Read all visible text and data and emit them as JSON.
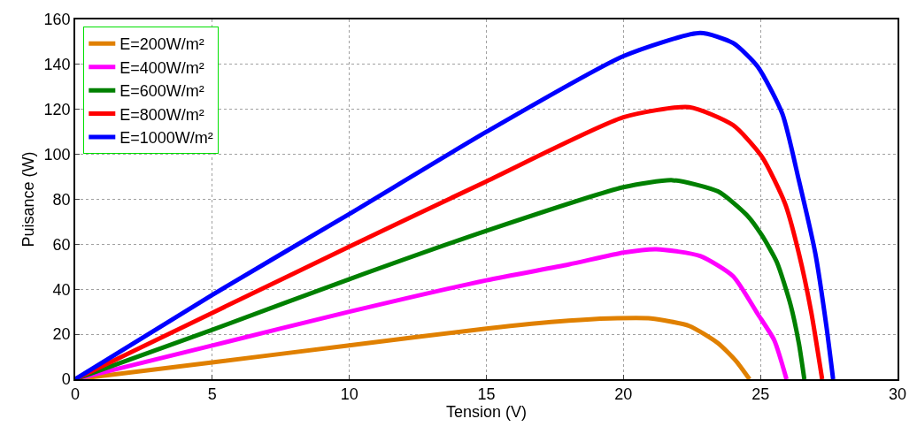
{
  "chart_data": {
    "type": "line",
    "xlabel": "Tension (V)",
    "ylabel": "Puisance (W)",
    "xlim": [
      0,
      30
    ],
    "xticks": [
      0,
      5,
      10,
      15,
      20,
      25,
      30
    ],
    "ylim": [
      0,
      160
    ],
    "yticks": [
      0,
      20,
      40,
      60,
      80,
      100,
      120,
      140,
      160
    ],
    "grid": true,
    "legend": "top left",
    "line_style": "solid",
    "series": [
      {
        "name": "E=200W/m²",
        "color": "#e08000",
        "x": [
          0,
          5,
          10,
          15,
          18,
          19.5,
          21,
          22.4,
          23.45,
          24.1,
          24.6
        ],
        "values": [
          0,
          7.5,
          15,
          22.5,
          26,
          27,
          27,
          23.7,
          16,
          8.2,
          0
        ]
      },
      {
        "name": "E=400W/m²",
        "color": "#ff00ff",
        "x": [
          0,
          5,
          10,
          15,
          18,
          20,
          21.2,
          22.8,
          24.0,
          24.9,
          25.5,
          25.95
        ],
        "values": [
          0,
          15,
          30,
          44,
          51,
          56.3,
          57.8,
          54.8,
          45.8,
          29,
          17.4,
          0
        ]
      },
      {
        "name": "E=600W/m²",
        "color": "#008000",
        "x": [
          0,
          5,
          10,
          15,
          20,
          21.8,
          23.45,
          24.5,
          25.05,
          25.6,
          26.1,
          26.4,
          26.6
        ],
        "values": [
          0,
          22,
          44.5,
          66,
          85.4,
          88.5,
          83.5,
          73,
          64,
          52,
          33,
          16,
          0
        ]
      },
      {
        "name": "E=800W/m²",
        "color": "#ff0000",
        "x": [
          0,
          5,
          10,
          15,
          20,
          22.4,
          24.0,
          25.05,
          25.9,
          26.4,
          26.85,
          27.25
        ],
        "values": [
          0,
          29.5,
          59,
          88,
          116.5,
          121,
          113,
          99,
          78,
          56,
          30,
          0
        ]
      },
      {
        "name": "E=1000W/m²",
        "color": "#0000ff",
        "x": [
          0,
          5,
          10,
          15,
          20,
          22.8,
          24.0,
          24.9,
          25.8,
          26.4,
          27.0,
          27.4,
          27.65
        ],
        "values": [
          0,
          37.5,
          73.5,
          110,
          143.7,
          154,
          149.5,
          139,
          118,
          88.5,
          56,
          24,
          0
        ]
      }
    ]
  }
}
